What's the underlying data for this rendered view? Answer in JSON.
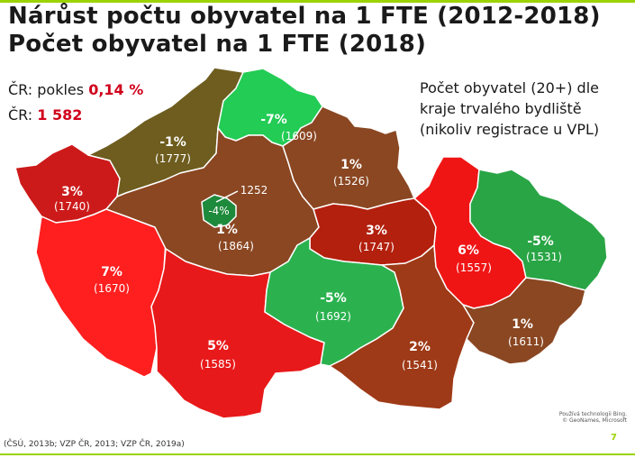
{
  "colors": {
    "accent": "#9bd400",
    "stat": "#d0011b"
  },
  "title_line1": "Nárůst počtu obyvatel na 1 FTE (2012-2018)",
  "title_line2": "Počet obyvatel na 1 FTE (2018)",
  "summary": {
    "decline_label": "ČR: pokles ",
    "decline_value": "0,14 %",
    "count_label": "ČR: ",
    "count_value": "1 582"
  },
  "note": {
    "line1": "Počet obyvatel (20+) dle",
    "line2": "kraje trvalého bydliště",
    "line3": "(nikoliv registrace u VPL)"
  },
  "regions": [
    {
      "id": "karlovarsky",
      "pct": "3%",
      "value": "(1740)",
      "color": "#cc1a1a"
    },
    {
      "id": "plzensky",
      "pct": "7%",
      "value": "(1670)",
      "color": "#ff1f1f"
    },
    {
      "id": "ustecky",
      "pct": "-1%",
      "value": "(1777)",
      "color": "#6e5d1f"
    },
    {
      "id": "liberecky",
      "pct": "-7%",
      "value": "(1609)",
      "color": "#22cc55"
    },
    {
      "id": "stredocesky",
      "pct": "1%",
      "value": "(1864)",
      "color": "#8a4722"
    },
    {
      "id": "praha",
      "pct": "-4%",
      "value": "1252",
      "color": "#1e8a3c"
    },
    {
      "id": "kralovehradecky",
      "pct": "1%",
      "value": "(1526)",
      "color": "#8a4722"
    },
    {
      "id": "pardubicky",
      "pct": "3%",
      "value": "(1747)",
      "color": "#b3200e"
    },
    {
      "id": "jihocesky",
      "pct": "5%",
      "value": "(1585)",
      "color": "#e8191a"
    },
    {
      "id": "vysocina",
      "pct": "-5%",
      "value": "(1692)",
      "color": "#2bb24f"
    },
    {
      "id": "jihomoravsky",
      "pct": "2%",
      "value": "(1541)",
      "color": "#9e3a17"
    },
    {
      "id": "olomoucky",
      "pct": "6%",
      "value": "(1557)",
      "color": "#f01515"
    },
    {
      "id": "moravskoslezsky",
      "pct": "-5%",
      "value": "(1531)",
      "color": "#29a545"
    },
    {
      "id": "zlinsky",
      "pct": "1%",
      "value": "(1611)",
      "color": "#8a4722"
    }
  ],
  "source": "(ČSÚ, 2013b; VZP ČR, 2013; VZP ČR, 2019a)",
  "credit_line1": "Používá technologii Bing.",
  "credit_line2": "© GeoNames, Microsoft",
  "page_number": "7"
}
